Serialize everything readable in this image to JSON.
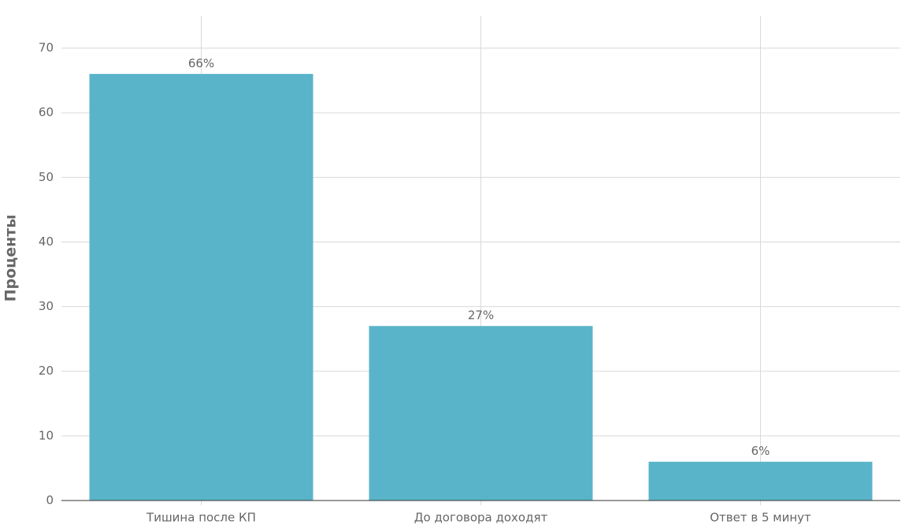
{
  "chart_data": {
    "type": "bar",
    "y_label": "Проценты",
    "categories": [
      "Тишина после КП",
      "До договора доходят",
      "Ответ в 5 минут"
    ],
    "values": [
      66,
      27,
      6
    ],
    "value_labels": [
      "66%",
      "27%",
      "6%"
    ],
    "color": "#5ab4c9",
    "ylim": [
      0,
      75
    ],
    "yticks": [
      0,
      10,
      20,
      30,
      40,
      50,
      60,
      70
    ],
    "grid": true
  }
}
